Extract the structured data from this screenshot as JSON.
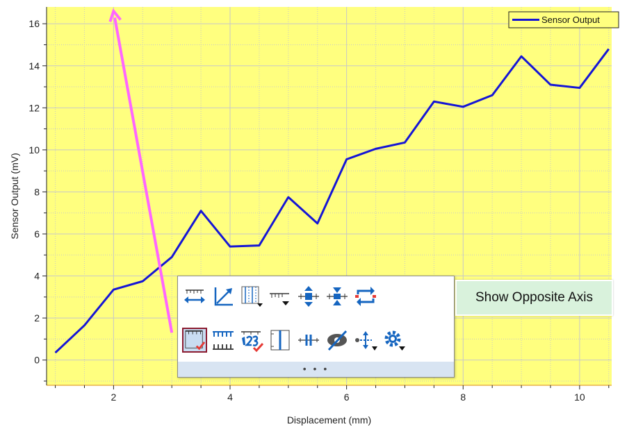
{
  "chart_data": {
    "type": "line",
    "xlabel": "Displacement (mm)",
    "ylabel": "Sensor Output (mV)",
    "xlim": [
      0.85,
      10.55
    ],
    "ylim": [
      -1.2,
      16.8
    ],
    "x_ticks": [
      2,
      4,
      6,
      8,
      10
    ],
    "y_ticks": [
      0,
      2,
      4,
      6,
      8,
      10,
      12,
      14,
      16
    ],
    "grid": true,
    "legend_position": "top-right",
    "colors": {
      "plot_background": "#ffff7f",
      "grid": "#c8c8c8",
      "series": "#1515d6",
      "annotation_arrow": "#ff66ff"
    },
    "series": [
      {
        "name": "Sensor Output",
        "x": [
          1,
          1.5,
          2,
          2.5,
          3,
          3.5,
          4,
          4.5,
          5,
          5.5,
          6,
          6.5,
          7,
          7.5,
          8,
          8.5,
          9,
          9.5,
          10,
          10.5
        ],
        "y": [
          0.35,
          1.65,
          3.35,
          3.75,
          4.9,
          7.1,
          5.4,
          5.45,
          7.75,
          6.5,
          9.55,
          10.05,
          10.35,
          12.3,
          12.05,
          12.6,
          14.45,
          13.1,
          12.95,
          14.8
        ]
      }
    ],
    "annotation_arrow": {
      "from": {
        "x": 3.0,
        "y": 1.3
      },
      "to": {
        "x": 2.0,
        "y": 16.6
      }
    }
  },
  "toolbar": {
    "row1_icons": [
      "axis-length-icon",
      "axis-scale-icon",
      "vertical-grid-icon",
      "tick-style-icon",
      "expand-vertical-icon",
      "collapse-vertical-icon",
      "swap-axes-icon"
    ],
    "row2_icons": [
      "show-opposite-axis-icon",
      "double-ticks-icon",
      "tick-labels-icon",
      "axis-lines-icon",
      "axis-break-icon",
      "hide-axis-icon",
      "axis-position-icon",
      "axis-settings-icon"
    ],
    "more_label": "• • •"
  },
  "tooltip": {
    "text": "Show Opposite Axis"
  }
}
